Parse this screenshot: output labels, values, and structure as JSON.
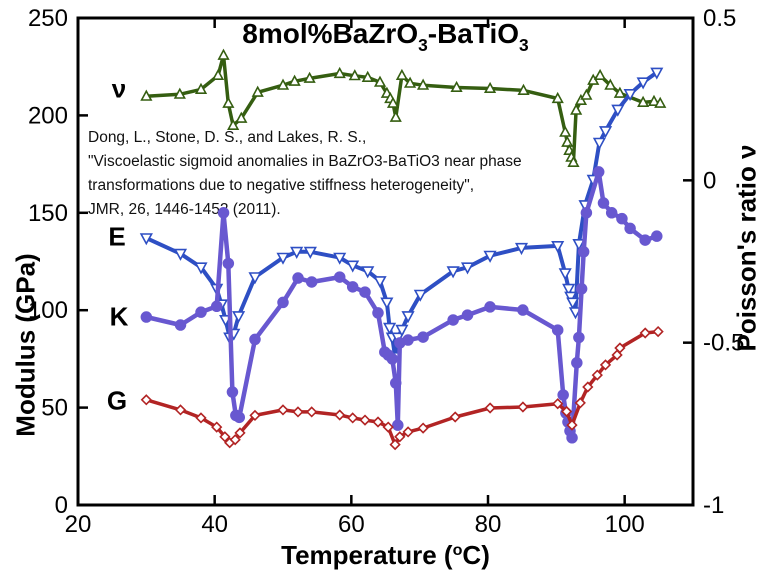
{
  "title": {
    "segments": [
      {
        "t": "8mol%BaZrO"
      },
      {
        "t": "3",
        "sub": true
      },
      {
        "t": "-BaTiO"
      },
      {
        "t": "3",
        "sub": true
      }
    ]
  },
  "citation": {
    "lines": [
      "Dong, L., Stone, D. S., and Lakes, R. S.,",
      "\"Viscoelastic sigmoid anomalies in BaZrO3-BaTiO3 near phase",
      "transformations due to negative stiffness heterogeneity\",",
      "JMR, 26, 1446-1452 (2011)."
    ]
  },
  "axes": {
    "x": {
      "label_segments": [
        {
          "t": "Temperature ("
        },
        {
          "t": "o",
          "sup": true
        },
        {
          "t": "C)"
        }
      ],
      "min": 20,
      "max": 110,
      "ticks": [
        20,
        40,
        60,
        80,
        100
      ]
    },
    "y_left": {
      "label": "Modulus (GPa)",
      "min": 0,
      "max": 250,
      "ticks": [
        0,
        50,
        100,
        150,
        200,
        250
      ]
    },
    "y_right": {
      "label": "Poisson's ratio ν",
      "min": -1,
      "max": 0.5,
      "ticks": [
        -1,
        -0.5,
        0,
        0.5
      ]
    }
  },
  "chart_data": {
    "type": "line",
    "grid": false,
    "frame": true,
    "series": [
      {
        "id": "nu",
        "label": "ν",
        "axis": "right",
        "color": "#355e11",
        "marker": "triangle-up",
        "open_marker": true,
        "points": [
          [
            30,
            0.259
          ],
          [
            34.9,
            0.265
          ],
          [
            38,
            0.28
          ],
          [
            40.5,
            0.323
          ],
          [
            41.3,
            0.385
          ],
          [
            42,
            0.237
          ],
          [
            42.7,
            0.169
          ],
          [
            43.9,
            0.191
          ],
          [
            46.3,
            0.271
          ],
          [
            50,
            0.293
          ],
          [
            51.7,
            0.305
          ],
          [
            53.9,
            0.314
          ],
          [
            58.3,
            0.329
          ],
          [
            60.5,
            0.322
          ],
          [
            62.4,
            0.317
          ],
          [
            64.2,
            0.302
          ],
          [
            65.2,
            0.268
          ],
          [
            65.7,
            0.252
          ],
          [
            66.1,
            0.237
          ],
          [
            66.5,
            0.194
          ],
          [
            67.4,
            0.323
          ],
          [
            68.6,
            0.299
          ],
          [
            70.5,
            0.293
          ],
          [
            75.4,
            0.286
          ],
          [
            80.3,
            0.283
          ],
          [
            85.2,
            0.277
          ],
          [
            90.2,
            0.252
          ],
          [
            91.3,
            0.148
          ],
          [
            91.6,
            0.117
          ],
          [
            91.9,
            0.092
          ],
          [
            92.2,
            0.071
          ],
          [
            92.5,
            0.055
          ],
          [
            92.9,
            0.216
          ],
          [
            93.6,
            0.246
          ],
          [
            94.4,
            0.262
          ],
          [
            95.4,
            0.308
          ],
          [
            96.4,
            0.323
          ],
          [
            97.9,
            0.293
          ],
          [
            99.3,
            0.268
          ],
          [
            102.7,
            0.24
          ],
          [
            104.3,
            0.243
          ],
          [
            105.2,
            0.237
          ]
        ]
      },
      {
        "id": "E",
        "label": "E",
        "axis": "left",
        "color": "#2e4fc4",
        "marker": "triangle-down",
        "open_marker": true,
        "points": [
          [
            30,
            137
          ],
          [
            35,
            129
          ],
          [
            38,
            122
          ],
          [
            40.3,
            111
          ],
          [
            41,
            103
          ],
          [
            41.6,
            95
          ],
          [
            42.2,
            86
          ],
          [
            42.8,
            88
          ],
          [
            43.5,
            97
          ],
          [
            45.9,
            117
          ],
          [
            50,
            127
          ],
          [
            52,
            130
          ],
          [
            54,
            130
          ],
          [
            58.3,
            127
          ],
          [
            60.2,
            123
          ],
          [
            62.4,
            120
          ],
          [
            64.2,
            115
          ],
          [
            65.2,
            104
          ],
          [
            65.6,
            91
          ],
          [
            66,
            86
          ],
          [
            66.4,
            76
          ],
          [
            66.8,
            86
          ],
          [
            67.4,
            90
          ],
          [
            68.3,
            97
          ],
          [
            70.1,
            108
          ],
          [
            74.9,
            120
          ],
          [
            77,
            122
          ],
          [
            80.3,
            128
          ],
          [
            84.9,
            132
          ],
          [
            90.2,
            133
          ],
          [
            91.3,
            119
          ],
          [
            91.8,
            111
          ],
          [
            92.1,
            107
          ],
          [
            92.4,
            104
          ],
          [
            92.8,
            99
          ],
          [
            93.3,
            134
          ],
          [
            94.2,
            154
          ],
          [
            95.4,
            167
          ],
          [
            96.3,
            186
          ],
          [
            97.2,
            192
          ],
          [
            99,
            203
          ],
          [
            100.8,
            211
          ],
          [
            102.7,
            217
          ],
          [
            104.7,
            222
          ]
        ]
      },
      {
        "id": "K",
        "label": "K",
        "axis": "left",
        "color": "#6858d0",
        "marker": "circle",
        "open_marker": false,
        "points": [
          [
            30,
            96.5
          ],
          [
            35,
            92.4
          ],
          [
            38,
            99
          ],
          [
            40.3,
            102
          ],
          [
            41.3,
            150
          ],
          [
            42,
            124
          ],
          [
            42.6,
            58
          ],
          [
            43.1,
            46
          ],
          [
            43.6,
            45
          ],
          [
            45.9,
            85
          ],
          [
            50,
            104
          ],
          [
            52.2,
            116.5
          ],
          [
            54.2,
            114.5
          ],
          [
            58.3,
            117
          ],
          [
            60.2,
            112
          ],
          [
            62,
            109.3
          ],
          [
            63.9,
            98.6
          ],
          [
            64.9,
            78.5
          ],
          [
            65.4,
            77
          ],
          [
            66,
            75
          ],
          [
            66.5,
            62.6
          ],
          [
            66.8,
            41
          ],
          [
            67.1,
            83.2
          ],
          [
            68.3,
            84.7
          ],
          [
            70.5,
            86.2
          ],
          [
            74.9,
            95
          ],
          [
            77,
            97.5
          ],
          [
            80.3,
            101.7
          ],
          [
            85.1,
            100.1
          ],
          [
            90.2,
            89.8
          ],
          [
            91,
            56.5
          ],
          [
            91.4,
            47.2
          ],
          [
            91.7,
            42.6
          ],
          [
            92,
            38
          ],
          [
            92.3,
            34.5
          ],
          [
            93,
            73
          ],
          [
            93.3,
            86
          ],
          [
            93.7,
            111
          ],
          [
            94,
            130
          ],
          [
            94.4,
            150
          ],
          [
            96.2,
            171
          ],
          [
            96.9,
            155
          ],
          [
            98.1,
            150
          ],
          [
            99.6,
            147
          ],
          [
            100.8,
            142
          ],
          [
            103,
            136
          ],
          [
            104.7,
            138
          ]
        ]
      },
      {
        "id": "G",
        "label": "G",
        "axis": "left",
        "color": "#b22424",
        "marker": "diamond",
        "open_marker": true,
        "points": [
          [
            30,
            54
          ],
          [
            35,
            48.8
          ],
          [
            38,
            44.7
          ],
          [
            40.3,
            40
          ],
          [
            41.5,
            35
          ],
          [
            42.2,
            32
          ],
          [
            43,
            33.5
          ],
          [
            43.7,
            37
          ],
          [
            45.9,
            46
          ],
          [
            50,
            48.8
          ],
          [
            52.2,
            47.8
          ],
          [
            54.2,
            47.8
          ],
          [
            58.3,
            46.2
          ],
          [
            60.2,
            44.7
          ],
          [
            62,
            43.6
          ],
          [
            63.9,
            42.6
          ],
          [
            65.4,
            40
          ],
          [
            66.4,
            31
          ],
          [
            67.1,
            35
          ],
          [
            68.3,
            37.5
          ],
          [
            70.5,
            39.5
          ],
          [
            75.2,
            45.2
          ],
          [
            80.3,
            49.8
          ],
          [
            85.1,
            50.3
          ],
          [
            90.2,
            52
          ],
          [
            91.5,
            48
          ],
          [
            92.3,
            41
          ],
          [
            93.5,
            52.4
          ],
          [
            94.6,
            60.6
          ],
          [
            96,
            66.7
          ],
          [
            97.2,
            71.9
          ],
          [
            98.9,
            77
          ],
          [
            99.3,
            80.6
          ],
          [
            103,
            88.3
          ],
          [
            104.9,
            89
          ]
        ]
      }
    ]
  }
}
